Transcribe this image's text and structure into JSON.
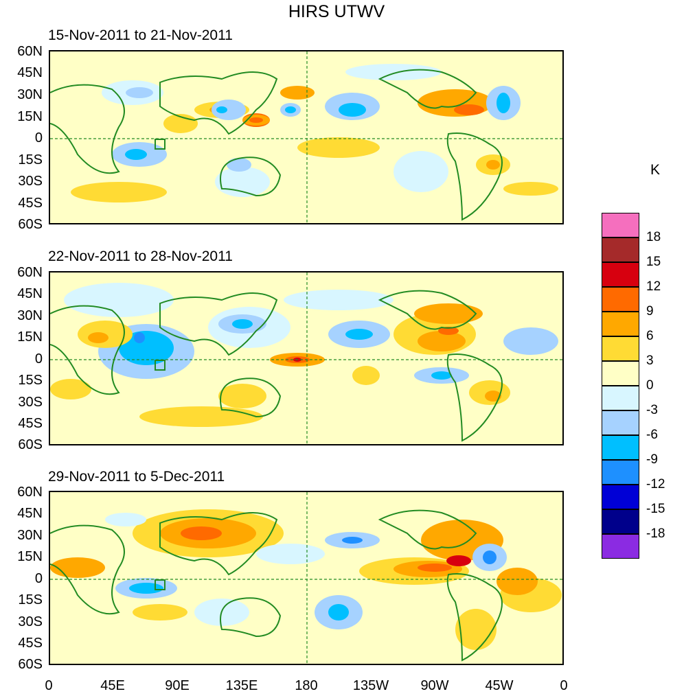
{
  "figure": {
    "title": "HIRS UTWV",
    "units": "K"
  },
  "panels": [
    {
      "date_range": "15-Nov-2011 to 21-Nov-2011"
    },
    {
      "date_range": "22-Nov-2011 to 28-Nov-2011"
    },
    {
      "date_range": "29-Nov-2011 to 5-Dec-2011"
    }
  ],
  "axes": {
    "lat_labels": [
      "60N",
      "45N",
      "30N",
      "15N",
      "0",
      "15S",
      "30S",
      "45S",
      "60S"
    ],
    "lon_labels": [
      "0",
      "45E",
      "90E",
      "135E",
      "180",
      "135W",
      "90W",
      "45W",
      "0"
    ]
  },
  "colorbar": {
    "levels": [
      "18",
      "15",
      "12",
      "9",
      "6",
      "3",
      "0",
      "-3",
      "-6",
      "-9",
      "-12",
      "-15",
      "-18"
    ],
    "colors": [
      "#f56fbe",
      "#a52a2a",
      "#d7000f",
      "#ff6a00",
      "#ffa800",
      "#ffdb34",
      "#ffffc6",
      "#d8f6ff",
      "#a6d2ff",
      "#00bfff",
      "#1e90ff",
      "#0000d6",
      "#00008b",
      "#8b2be2"
    ]
  },
  "map_colors": {
    "coast": "#228b22",
    "border": "#228b22",
    "equator": "#228b22"
  }
}
